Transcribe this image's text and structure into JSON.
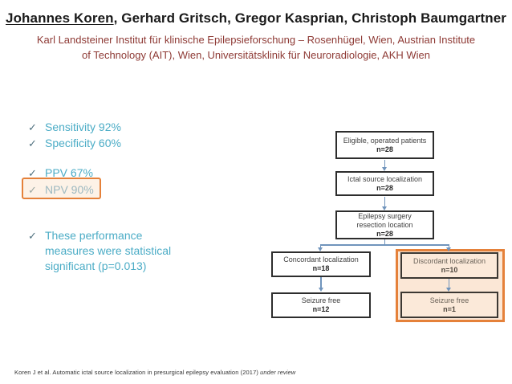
{
  "slide_title": {
    "authors_underlined": "Johannes Koren",
    "authors_rest": ", Gerhard Gritsch, Gregor Kasprian, Christoph Baumgartner"
  },
  "affiliation": {
    "line1": "Karl Landsteiner Institut für klinische Epilepsieforschung – Rosenhügel, Wien, Austrian Institute",
    "line2": "of Technology (AIT), Wien, Universitätsklinik für Neuroradiologie, AKH Wien"
  },
  "bullets": {
    "check_glyph": "✓",
    "items": [
      {
        "label": "Sensitivity 92%",
        "highlighted": false
      },
      {
        "label": "Specificity 60%",
        "highlighted": false
      },
      {
        "label": "PPV 67%",
        "highlighted": false
      },
      {
        "label": "NPV 90%",
        "highlighted": true
      },
      {
        "label": "These performance measures were statistical significant (p=0.013)",
        "highlighted": false
      }
    ]
  },
  "flowchart": {
    "nodes": {
      "eligible": {
        "label": "Eligible, operated patients",
        "n": "n=28"
      },
      "ictal": {
        "label": "Ictal source localization",
        "n": "n=28"
      },
      "resection": {
        "label_line1": "Epilepsy surgery",
        "label_line2": "resection location",
        "n": "n=28"
      },
      "concordant": {
        "label": "Concordant localization",
        "n": "n=18"
      },
      "discordant": {
        "label": "Discordant localization",
        "n": "n=10",
        "highlighted": true
      },
      "seizure_free_left": {
        "label": "Seizure free",
        "n": "n=12"
      },
      "seizure_free_right": {
        "label": "Seizure free",
        "n": "n=1",
        "highlighted": true
      }
    }
  },
  "footer": {
    "citation_main": "Koren J et al. Automatic ictal source localization in presurgical epilepsy evaluation (2017) ",
    "citation_italic": "under review"
  },
  "colors": {
    "bullet_teal": "#4BACC6",
    "checkmark_slate": "#50717F",
    "highlight_orange_border": "#E5813A",
    "highlight_peach_fill": "#FBE7D6",
    "affiliation_red": "#8E3A35",
    "arrow_blue": "#7094BC",
    "box_border_dark": "#2D2D2D",
    "box_text_dark": "#3F3F3F"
  }
}
